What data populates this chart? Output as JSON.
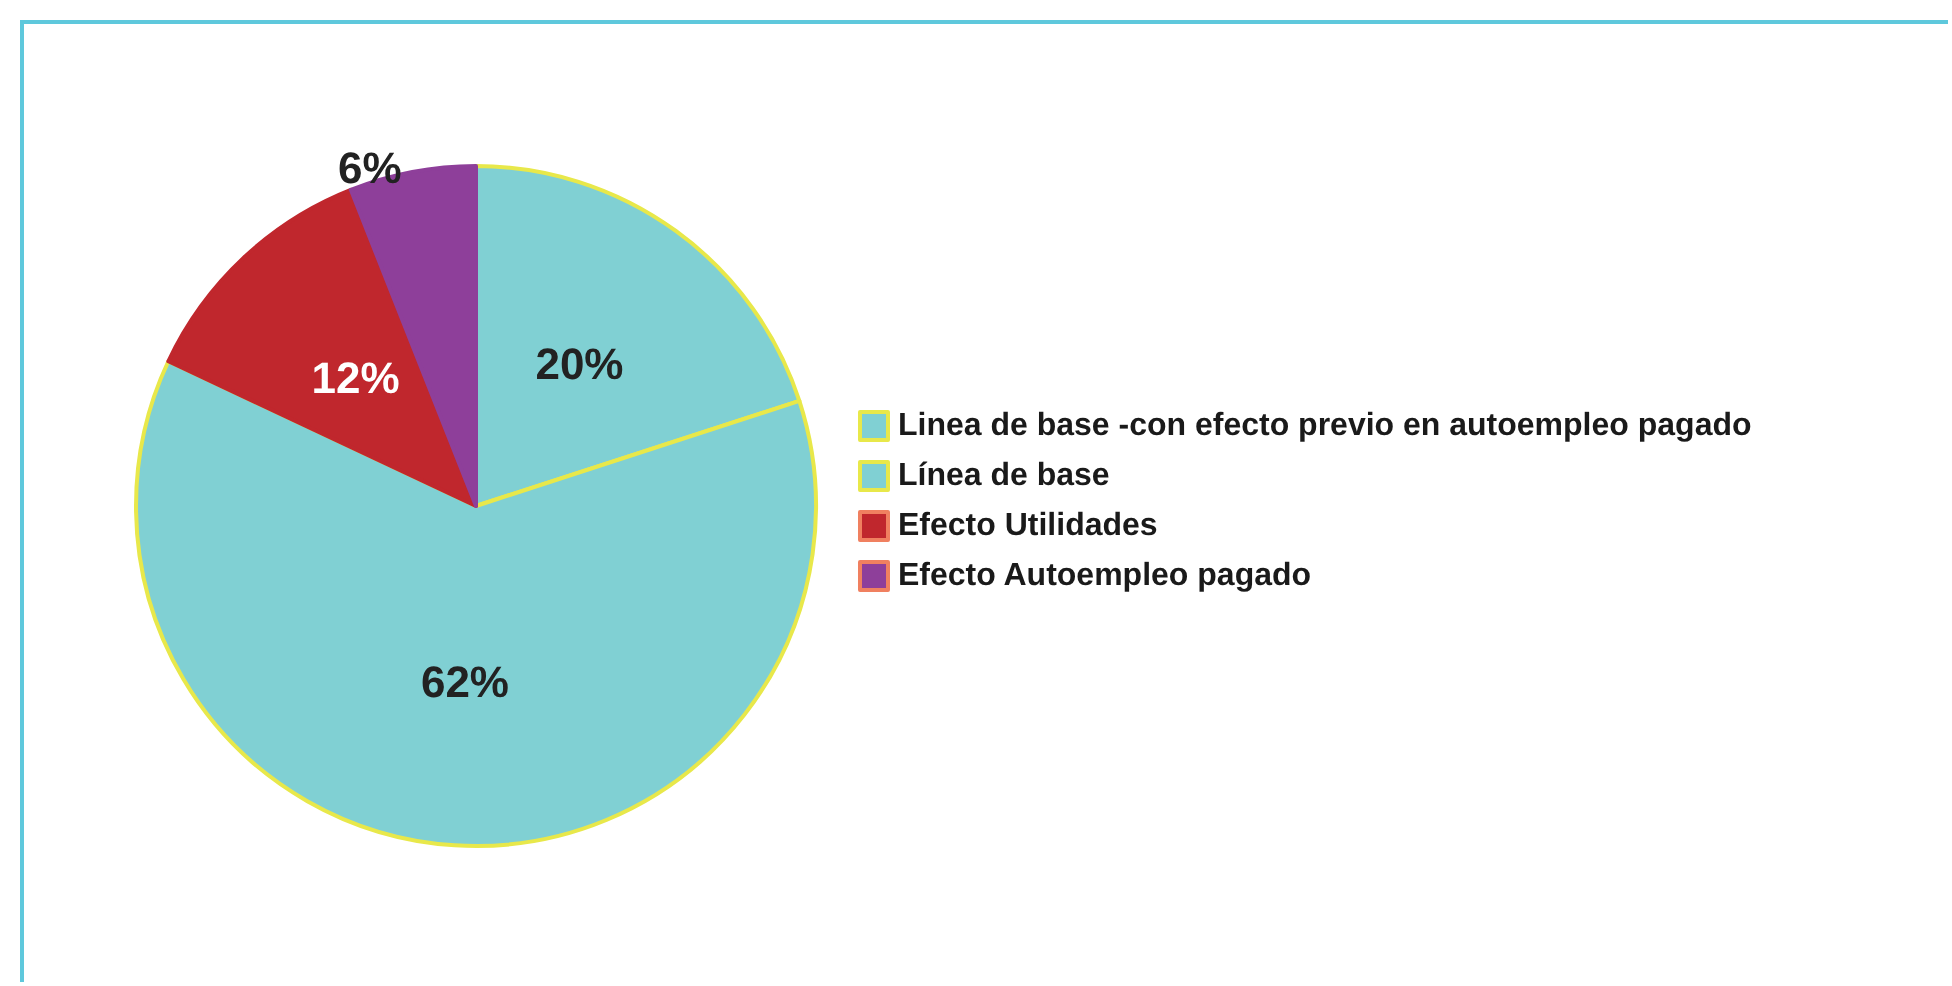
{
  "chart_data": {
    "type": "pie",
    "categories": [
      "Linea de base -con efecto previo en autoempleo pagado",
      "Línea de base",
      "Efecto Utilidades",
      "Efecto Autoempleo pagado"
    ],
    "values": [
      20,
      62,
      12,
      6
    ],
    "value_labels": [
      "20%",
      "62%",
      "12%",
      "6%"
    ],
    "colors": [
      "#80d0d3",
      "#80d0d3",
      "#c0272d",
      "#8e3f9a"
    ],
    "legend": "right"
  }
}
